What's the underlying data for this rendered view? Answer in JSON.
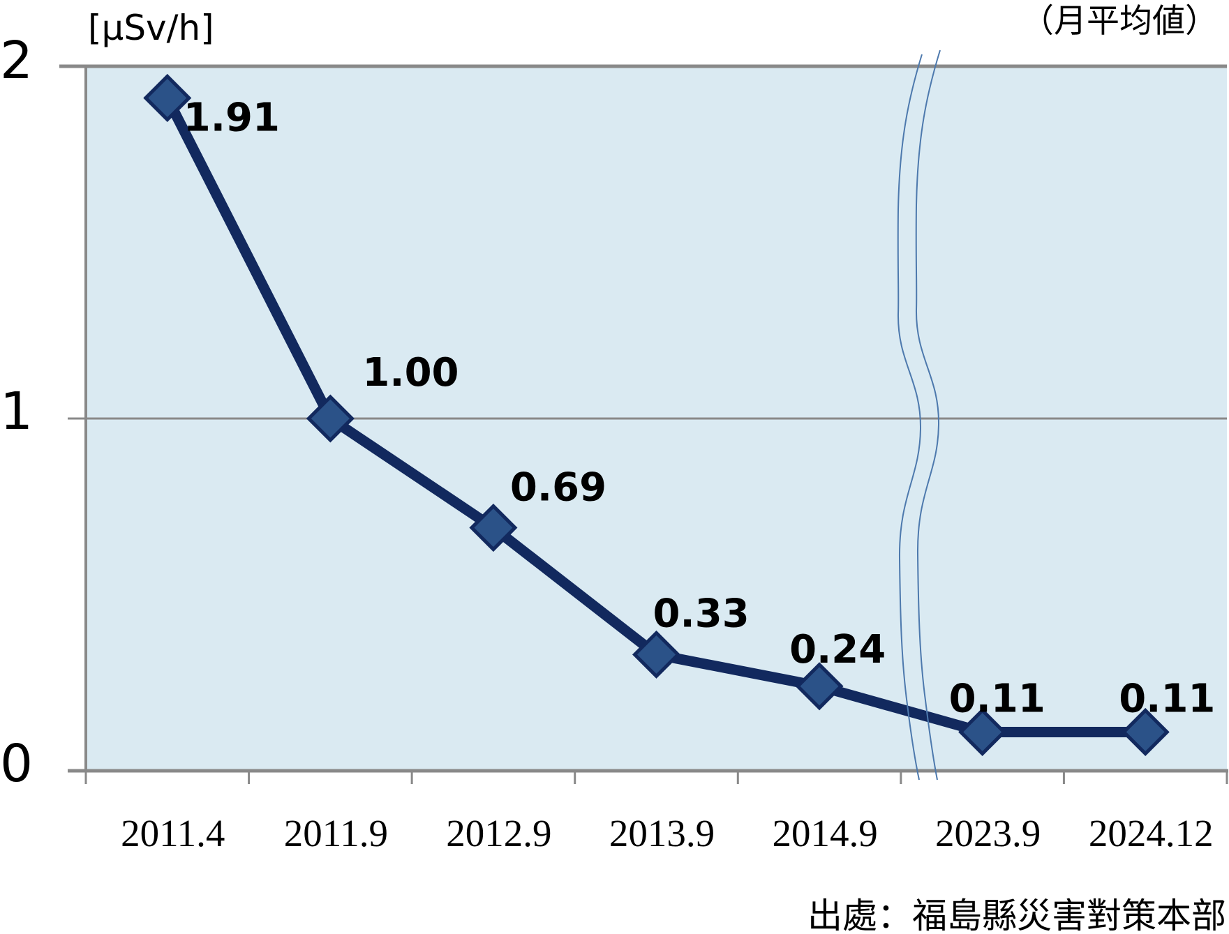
{
  "chart_data": {
    "type": "line",
    "unit_label": "[μSv/h]",
    "subtitle": "（月平均値）",
    "source": "出處：福島縣災害對策本部",
    "categories": [
      "2011.4",
      "2011.9",
      "2012.9",
      "2013.9",
      "2014.9",
      "2023.9",
      "2024.12"
    ],
    "values": [
      1.91,
      1.0,
      0.69,
      0.33,
      0.24,
      0.11,
      0.11
    ],
    "data_labels": [
      "1.91",
      "1.00",
      "0.69",
      "0.33",
      "0.24",
      "0.11",
      "0.11"
    ],
    "y_ticks": [
      "2",
      "1",
      "0"
    ],
    "ylim": [
      0,
      2
    ],
    "grid": "horizontal line at y=1",
    "legend": "none",
    "axis_break_between": [
      "2014.9",
      "2023.9"
    ],
    "colors": {
      "plot_background": "#daeaf2",
      "line": "#12295e",
      "marker_fill": "#2b5288",
      "marker_stroke": "#12295e",
      "axis": "#898989",
      "axis_break_wave": "#4d79ad",
      "label_text": "#000000"
    }
  }
}
